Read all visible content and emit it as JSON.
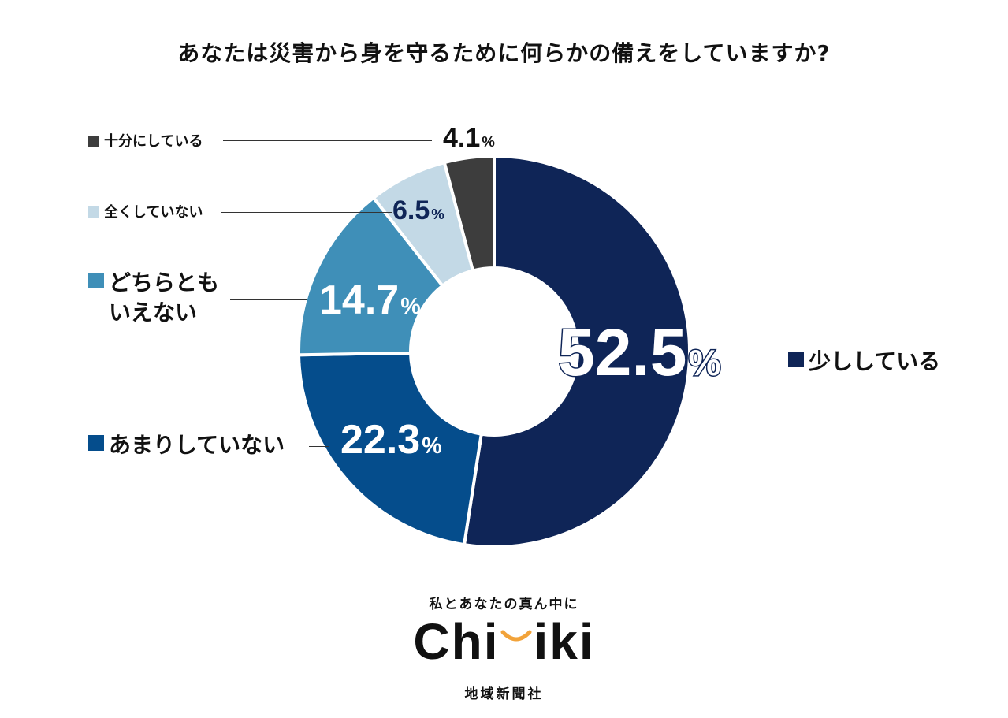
{
  "chart_data": {
    "type": "pie",
    "title": "あなたは災害から身を守るために何らかの備えをしていますか?",
    "unit": "%",
    "slices": [
      {
        "label": "少ししている",
        "value": 52.5,
        "value_text": "52.5",
        "color": "#0f2557"
      },
      {
        "label": "あまりしていない",
        "value": 22.3,
        "value_text": "22.3",
        "color": "#054d8c"
      },
      {
        "label": "どちらとも\nいえない",
        "value": 14.7,
        "value_text": "14.7",
        "color": "#3f8fb8"
      },
      {
        "label": "全くしていない",
        "value": 6.5,
        "value_text": "6.5",
        "color": "#c3d9e6"
      },
      {
        "label": "十分にしている",
        "value": 4.1,
        "value_text": "4.1",
        "color": "#3d3d3d"
      }
    ]
  },
  "branding": {
    "tagline": "私とあなたの真ん中に",
    "logo_left": "Chi",
    "logo_right": "iki",
    "logo_accent_color": "#f2a33a",
    "company": "地域新聞社"
  }
}
